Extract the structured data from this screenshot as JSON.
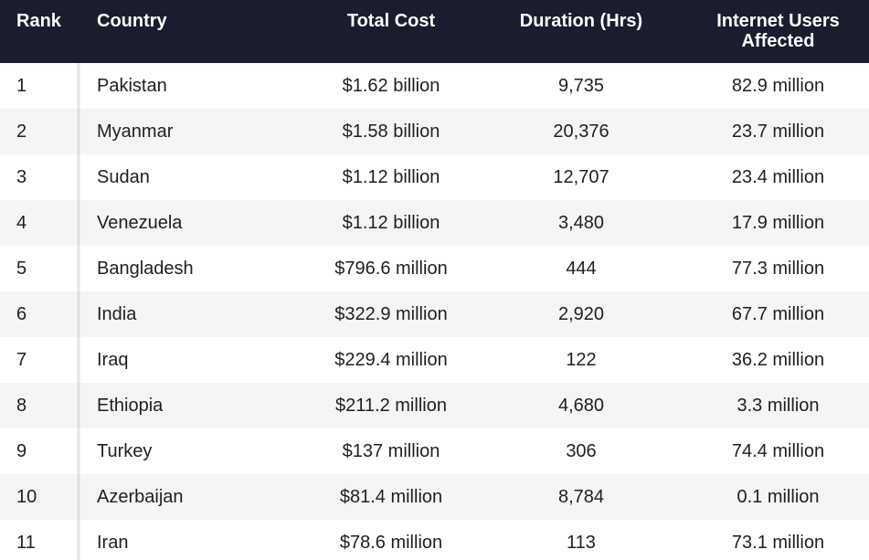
{
  "chart_data": {
    "type": "table",
    "columns": [
      "Rank",
      "Country",
      "Total Cost",
      "Duration (Hrs)",
      "Internet Users Affected"
    ],
    "users_header_lines": [
      "Internet Users",
      "Affected"
    ],
    "rows": [
      {
        "rank": "1",
        "country": "Pakistan",
        "cost": "$1.62 billion",
        "duration": "9,735",
        "users": "82.9 million"
      },
      {
        "rank": "2",
        "country": "Myanmar",
        "cost": "$1.58 billion",
        "duration": "20,376",
        "users": "23.7 million"
      },
      {
        "rank": "3",
        "country": "Sudan",
        "cost": "$1.12 billion",
        "duration": "12,707",
        "users": "23.4 million"
      },
      {
        "rank": "4",
        "country": "Venezuela",
        "cost": "$1.12 billion",
        "duration": "3,480",
        "users": "17.9 million"
      },
      {
        "rank": "5",
        "country": "Bangladesh",
        "cost": "$796.6 million",
        "duration": "444",
        "users": "77.3 million"
      },
      {
        "rank": "6",
        "country": "India",
        "cost": "$322.9 million",
        "duration": "2,920",
        "users": "67.7 million"
      },
      {
        "rank": "7",
        "country": "Iraq",
        "cost": "$229.4 million",
        "duration": "122",
        "users": "36.2 million"
      },
      {
        "rank": "8",
        "country": "Ethiopia",
        "cost": "$211.2 million",
        "duration": "4,680",
        "users": "3.3 million"
      },
      {
        "rank": "9",
        "country": "Turkey",
        "cost": "$137 million",
        "duration": "306",
        "users": "74.4 million"
      },
      {
        "rank": "10",
        "country": "Azerbaijan",
        "cost": "$81.4 million",
        "duration": "8,784",
        "users": "0.1 million"
      },
      {
        "rank": "11",
        "country": "Iran",
        "cost": "$78.6 million",
        "duration": "113",
        "users": "73.1 million"
      }
    ],
    "header_background": "#1a1d2e",
    "stripe_color": "#f5f5f5"
  }
}
